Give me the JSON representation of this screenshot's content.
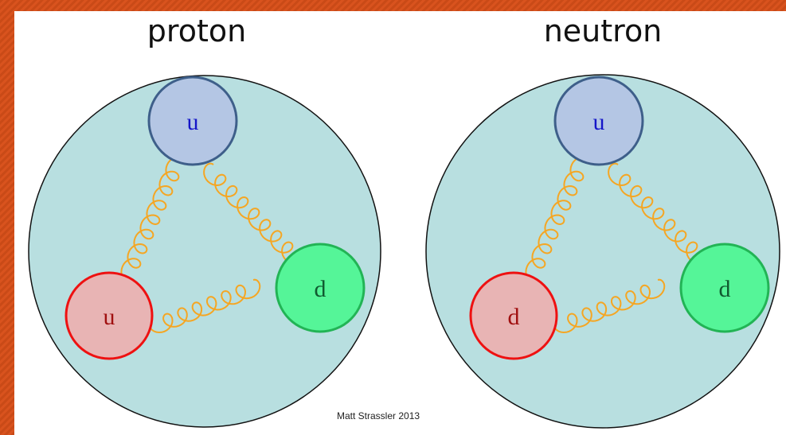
{
  "panels": [
    {
      "title": "proton",
      "quarks": [
        "u",
        "u",
        "d"
      ]
    },
    {
      "title": "neutron",
      "quarks": [
        "u",
        "d",
        "d"
      ]
    }
  ],
  "credit": "Matt Strassler 2013"
}
